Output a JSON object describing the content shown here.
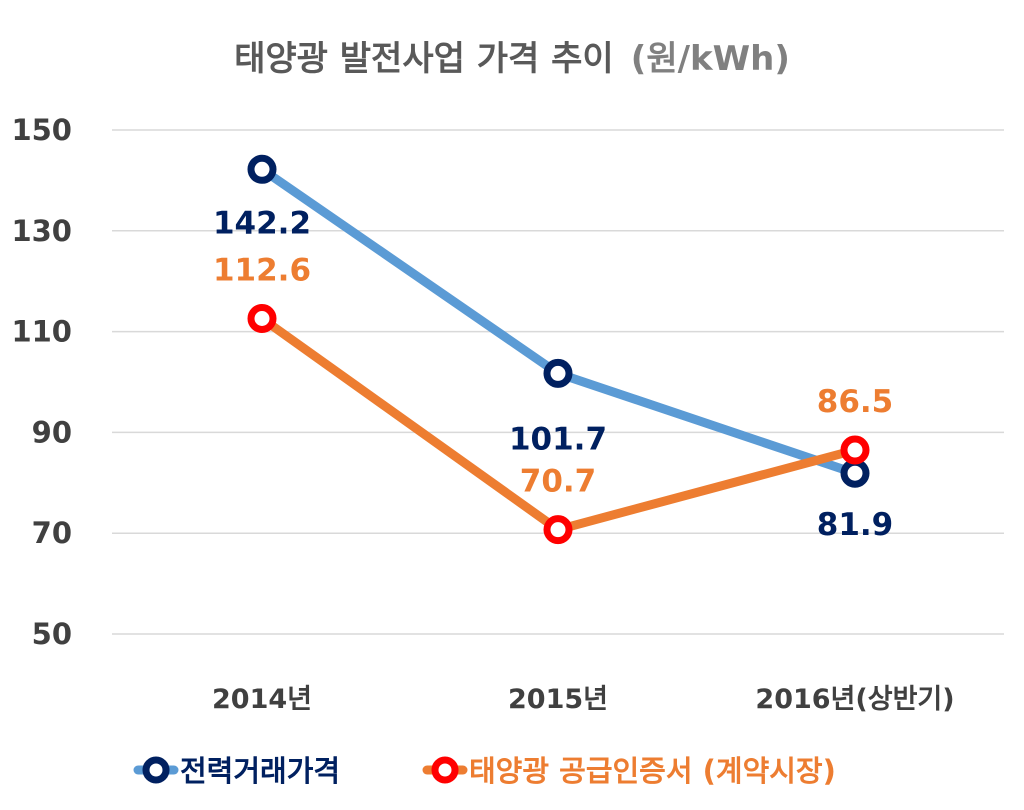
{
  "chart_data": {
    "type": "line",
    "title": "태양광 발전사업 가격 추이",
    "title_unit": "(원/kWh)",
    "categories": [
      "2014년",
      "2015년",
      "2016년(상반기)"
    ],
    "ylim": [
      50,
      150
    ],
    "yticks": [
      "150",
      "130",
      "110",
      "90",
      "70",
      "50"
    ],
    "grid": true,
    "legend_position": "bottom",
    "series": [
      {
        "name": "전력거래가격",
        "values": [
          142.2,
          101.7,
          81.9
        ],
        "labels": [
          "142.2",
          "101.7",
          "81.9"
        ],
        "line_color": "#5B9BD5",
        "marker_color": "#002060",
        "label_color": "#002060"
      },
      {
        "name": "태양광 공급인증서 (계약시장)",
        "values": [
          112.6,
          70.7,
          86.5
        ],
        "labels": [
          "112.6",
          "70.7",
          "86.5"
        ],
        "line_color": "#ED7D31",
        "marker_color": "#FF0000",
        "label_color": "#ED7D31"
      }
    ]
  }
}
